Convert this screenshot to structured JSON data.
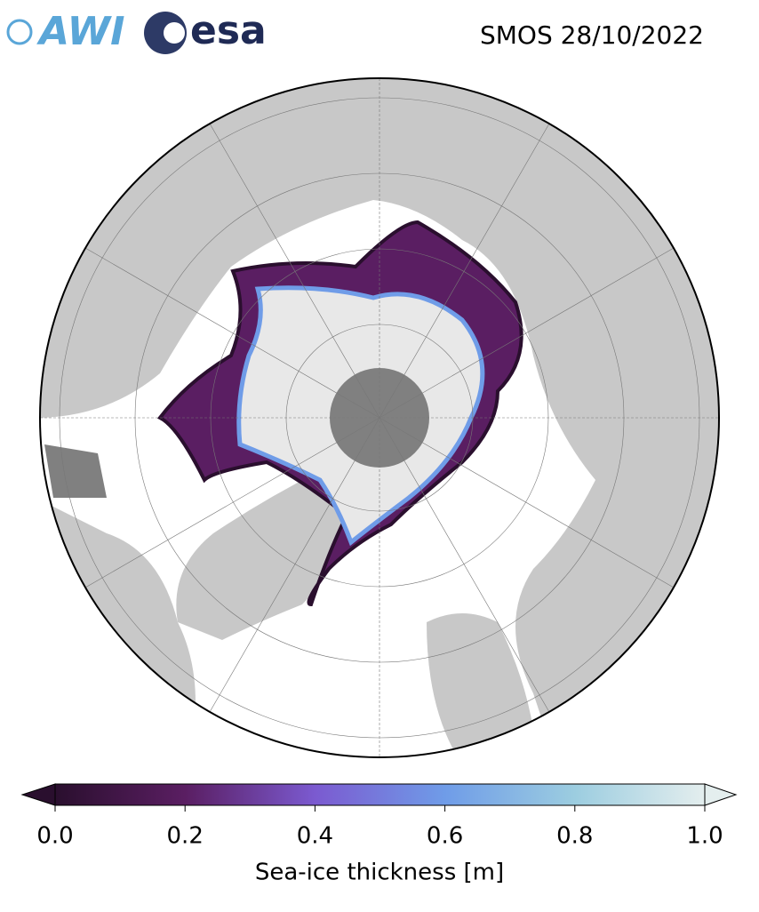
{
  "header": {
    "title": "SMOS 28/10/2022",
    "logos": [
      "AWI",
      "esa"
    ]
  },
  "colorbar": {
    "label": "Sea-ice thickness [m]",
    "lim": [
      0,
      1
    ],
    "colors": [
      "#2a0f2e",
      "#5a1e62",
      "#7b5ad0",
      "#6f9ce8",
      "#9ccde0",
      "#e4eeee"
    ],
    "ticks": [
      {
        "value": 0,
        "label": "0.0"
      },
      {
        "value": 0.2,
        "label": "0.2"
      },
      {
        "value": 0.4,
        "label": "0.4"
      },
      {
        "value": 0.6,
        "label": "0.6"
      },
      {
        "value": 0.8,
        "label": "0.8"
      },
      {
        "value": 1,
        "label": "1.0"
      }
    ]
  }
}
